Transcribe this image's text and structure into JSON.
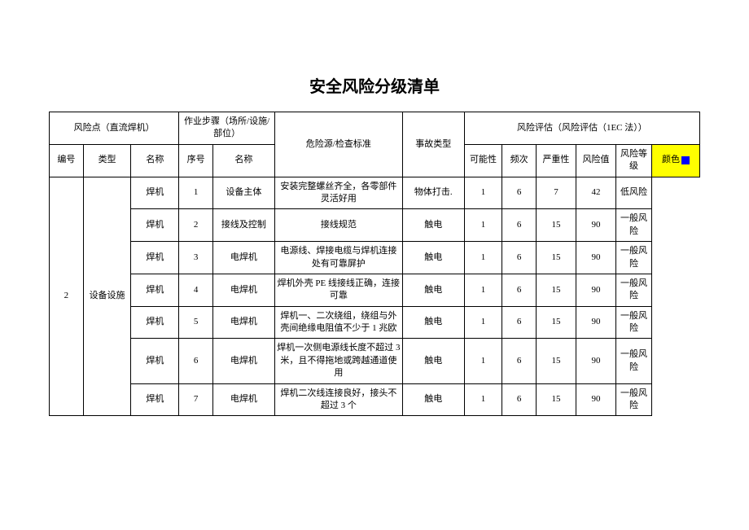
{
  "title": "安全风险分级清单",
  "headers": {
    "risk_point_group": "风险点（直流焊机）",
    "step_group": "作业步骤（场所/设施/部位）",
    "hazard": "危险源/检查标准",
    "accident": "事故类型",
    "eval_group": "风险评估（风险评估（1EC 法））",
    "id": "编号",
    "type": "类型",
    "name": "名称",
    "step_no": "序号",
    "step_name": "名称",
    "poss": "可能性",
    "freq": "频次",
    "sev": "严重性",
    "val": "风险值",
    "level": "风险等级",
    "color": "颜色"
  },
  "group": {
    "id": "2",
    "type": "设备设施"
  },
  "rows": [
    {
      "name": "焊机",
      "step_no": "1",
      "step_name": "设备主体",
      "hazard": "安装完整螺丝齐全，各零部件灵活好用",
      "accident": "物体打击.",
      "poss": "1",
      "freq": "6",
      "sev": "7",
      "val": "42",
      "level": "低风险"
    },
    {
      "name": "焊机",
      "step_no": "2",
      "step_name": "接线及控制",
      "hazard": "接线规范",
      "accident": "触电",
      "poss": "1",
      "freq": "6",
      "sev": "15",
      "val": "90",
      "level": "一般风险"
    },
    {
      "name": "焊机",
      "step_no": "3",
      "step_name": "电焊机",
      "hazard": "电源线、焊接电缆与焊机连接处有可靠屏护",
      "accident": "触电",
      "poss": "1",
      "freq": "6",
      "sev": "15",
      "val": "90",
      "level": "一般风险"
    },
    {
      "name": "焊机",
      "step_no": "4",
      "step_name": "电焊机",
      "hazard": "焊机外壳 PE 线接线正确，连接可靠",
      "accident": "触电",
      "poss": "1",
      "freq": "6",
      "sev": "15",
      "val": "90",
      "level": "一般风险"
    },
    {
      "name": "焊机",
      "step_no": "5",
      "step_name": "电焊机",
      "hazard": "焊机一、二次绕组，绕组与外壳间绝缘电阻值不少于 1 兆欧",
      "accident": "触电",
      "poss": "1",
      "freq": "6",
      "sev": "15",
      "val": "90",
      "level": "一般风险"
    },
    {
      "name": "焊机",
      "step_no": "6",
      "step_name": "电焊机",
      "hazard": "焊机一次侧电源线长度不超过 3 米，且不得拖地或跨越通道使用",
      "accident": "触电",
      "poss": "1",
      "freq": "6",
      "sev": "15",
      "val": "90",
      "level": "一般风险"
    },
    {
      "name": "焊机",
      "step_no": "7",
      "step_name": "电焊机",
      "hazard": "焊机二次线连接良好，接头不超过 3 个",
      "accident": "触电",
      "poss": "1",
      "freq": "6",
      "sev": "15",
      "val": "90",
      "level": "一般风险"
    }
  ],
  "colors": {
    "highlight_bg": "#ffff00",
    "square": "#0000ff"
  }
}
